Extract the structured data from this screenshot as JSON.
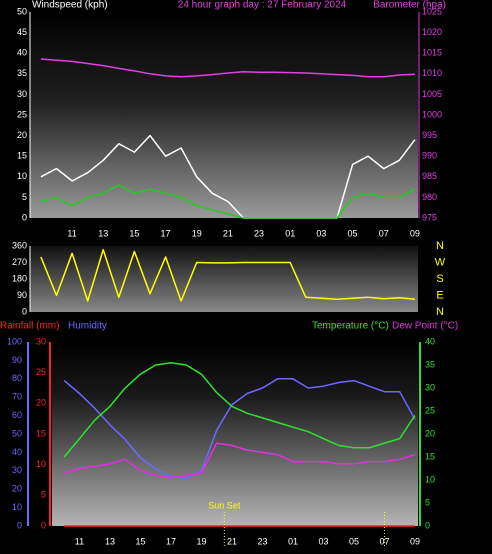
{
  "chart_data": [
    {
      "type": "line",
      "title": "24 hour graph day : 27 February 2024",
      "y_label": "Windspeed (kph)",
      "x": [
        0,
        1,
        2,
        3,
        4,
        5,
        6,
        7,
        8,
        9,
        10,
        11,
        12,
        13,
        14,
        15,
        16,
        17,
        18,
        19,
        20,
        21,
        22,
        23,
        24
      ],
      "xlim": [
        -0.7,
        24.2
      ],
      "xticks": [
        {
          "value": 2,
          "label": "11"
        },
        {
          "value": 4,
          "label": "13"
        },
        {
          "value": 6,
          "label": "15"
        },
        {
          "value": 8,
          "label": "17"
        },
        {
          "value": 10,
          "label": "19"
        },
        {
          "value": 12,
          "label": "21"
        },
        {
          "value": 14,
          "label": "23"
        },
        {
          "value": 16,
          "label": "01"
        },
        {
          "value": 18,
          "label": "03"
        },
        {
          "value": 20,
          "label": "05"
        },
        {
          "value": 22,
          "label": "07"
        },
        {
          "value": 24,
          "label": "09"
        }
      ],
      "ylim": [
        0,
        50
      ],
      "yticks": [
        0,
        5,
        10,
        15,
        20,
        25,
        30,
        35,
        40,
        45,
        50
      ],
      "y2lim": [
        975,
        1025
      ],
      "y2ticks": [
        975,
        980,
        985,
        990,
        995,
        1000,
        1005,
        1010,
        1015,
        1020,
        1025
      ],
      "series": [
        {
          "color": "#ffffff",
          "values": [
            10,
            12,
            9,
            11,
            14,
            18,
            16,
            20,
            15,
            17,
            10,
            6,
            4,
            0,
            0,
            0,
            0,
            0,
            0,
            0,
            13,
            15,
            12,
            14,
            19
          ]
        },
        {
          "color": "#22cc22",
          "values": [
            4,
            5,
            3,
            5,
            6,
            8,
            6,
            7,
            6,
            5,
            3,
            2,
            1,
            0,
            0,
            0,
            0,
            0,
            0,
            0,
            5,
            6,
            5,
            5,
            7
          ]
        },
        {
          "name": "Barometer (hpa)",
          "color": "#e040e0",
          "axis": "y2",
          "values": [
            1013.6,
            1013.3,
            1013,
            1012.5,
            1012,
            1011.3,
            1010.7,
            1010,
            1009.5,
            1009.3,
            1009.5,
            1009.8,
            1010.2,
            1010.5,
            1010.4,
            1010.4,
            1010.3,
            1010.2,
            1010,
            1009.8,
            1009.6,
            1009.3,
            1009.3,
            1009.7,
            1009.9
          ]
        }
      ]
    },
    {
      "type": "line",
      "x": [
        0,
        1,
        2,
        3,
        4,
        5,
        6,
        7,
        8,
        9,
        10,
        11,
        12,
        13,
        14,
        15,
        16,
        17,
        18,
        19,
        20,
        21,
        22,
        23,
        24
      ],
      "xlim": [
        -0.7,
        24.2
      ],
      "ylim": [
        0,
        360
      ],
      "yticks": [
        0,
        90,
        180,
        270,
        360
      ],
      "y2lim": [
        0,
        360
      ],
      "y2ticks": [
        {
          "value": 0,
          "label": "N"
        },
        {
          "value": 90,
          "label": "E"
        },
        {
          "value": 180,
          "label": "S"
        },
        {
          "value": 270,
          "label": "W"
        },
        {
          "value": 360,
          "label": "N"
        }
      ],
      "series": [
        {
          "color": "#ffff00",
          "values": [
            300,
            90,
            320,
            60,
            340,
            80,
            330,
            100,
            300,
            60,
            270,
            268,
            268,
            270,
            270,
            270,
            270,
            80,
            75,
            70,
            75,
            80,
            72,
            78,
            70
          ]
        }
      ]
    },
    {
      "type": "line",
      "x": [
        0,
        1,
        2,
        3,
        4,
        5,
        6,
        7,
        8,
        9,
        10,
        11,
        12,
        13,
        14,
        15,
        16,
        17,
        18,
        19,
        20,
        21,
        22,
        23,
        24
      ],
      "xlim": [
        0.2,
        24.2
      ],
      "xticks": [
        {
          "value": 2,
          "label": "11"
        },
        {
          "value": 4,
          "label": "13"
        },
        {
          "value": 6,
          "label": "15"
        },
        {
          "value": 8,
          "label": "17"
        },
        {
          "value": 10,
          "label": "19"
        },
        {
          "value": 12,
          "label": "21"
        },
        {
          "value": 14,
          "label": "23"
        },
        {
          "value": 16,
          "label": "01"
        },
        {
          "value": 18,
          "label": "03"
        },
        {
          "value": 20,
          "label": "05"
        },
        {
          "value": 22,
          "label": "07"
        },
        {
          "value": 24,
          "label": "09"
        }
      ],
      "ylim": [
        0,
        100
      ],
      "yticks": [
        0,
        10,
        20,
        30,
        40,
        50,
        60,
        70,
        80,
        90,
        100
      ],
      "y2lim": [
        0,
        40
      ],
      "y2ticks": [
        0,
        5,
        10,
        15,
        20,
        25,
        30,
        35,
        40
      ],
      "y3lim": [
        0,
        30
      ],
      "y3ticks": [
        0,
        5,
        10,
        15,
        20,
        25,
        30
      ],
      "series": [
        {
          "name": "Rainfall (mm)",
          "color": "#ff2020",
          "axis": "y3",
          "values": [
            null,
            0,
            0,
            0,
            0,
            0,
            0,
            0,
            0,
            0,
            0,
            0,
            0,
            0,
            0,
            0,
            0,
            0,
            0,
            0,
            0,
            0,
            0,
            0,
            0
          ]
        },
        {
          "name": "Humidity",
          "color": "#6a6aff",
          "values": [
            null,
            79,
            72,
            64,
            55,
            47,
            37,
            31,
            27,
            26,
            30,
            52,
            66,
            72,
            75,
            80,
            80,
            75,
            76,
            78,
            79,
            76,
            73,
            73,
            58
          ]
        },
        {
          "name": "Temperature (°C)",
          "color": "#30e030",
          "axis": "y2",
          "values": [
            null,
            15,
            19,
            23,
            26,
            30,
            33,
            35,
            35.5,
            35,
            33,
            29,
            26,
            24.5,
            23.5,
            22.5,
            21.5,
            20.5,
            19,
            17.5,
            17,
            17,
            18,
            19,
            24
          ]
        },
        {
          "name": "Dew Point (°C)",
          "color": "#e030e0",
          "axis": "y2",
          "values": [
            null,
            11.5,
            12.5,
            13,
            13.5,
            14.5,
            12,
            11,
            10.5,
            11,
            11.5,
            18,
            17.5,
            16.5,
            16,
            15.5,
            14,
            14,
            14,
            13.5,
            13.5,
            14,
            14,
            14.5,
            15.5
          ]
        }
      ],
      "annotations": [
        {
          "text": "Sun Set",
          "x": 11.5
        },
        {
          "x": 22
        }
      ]
    }
  ]
}
